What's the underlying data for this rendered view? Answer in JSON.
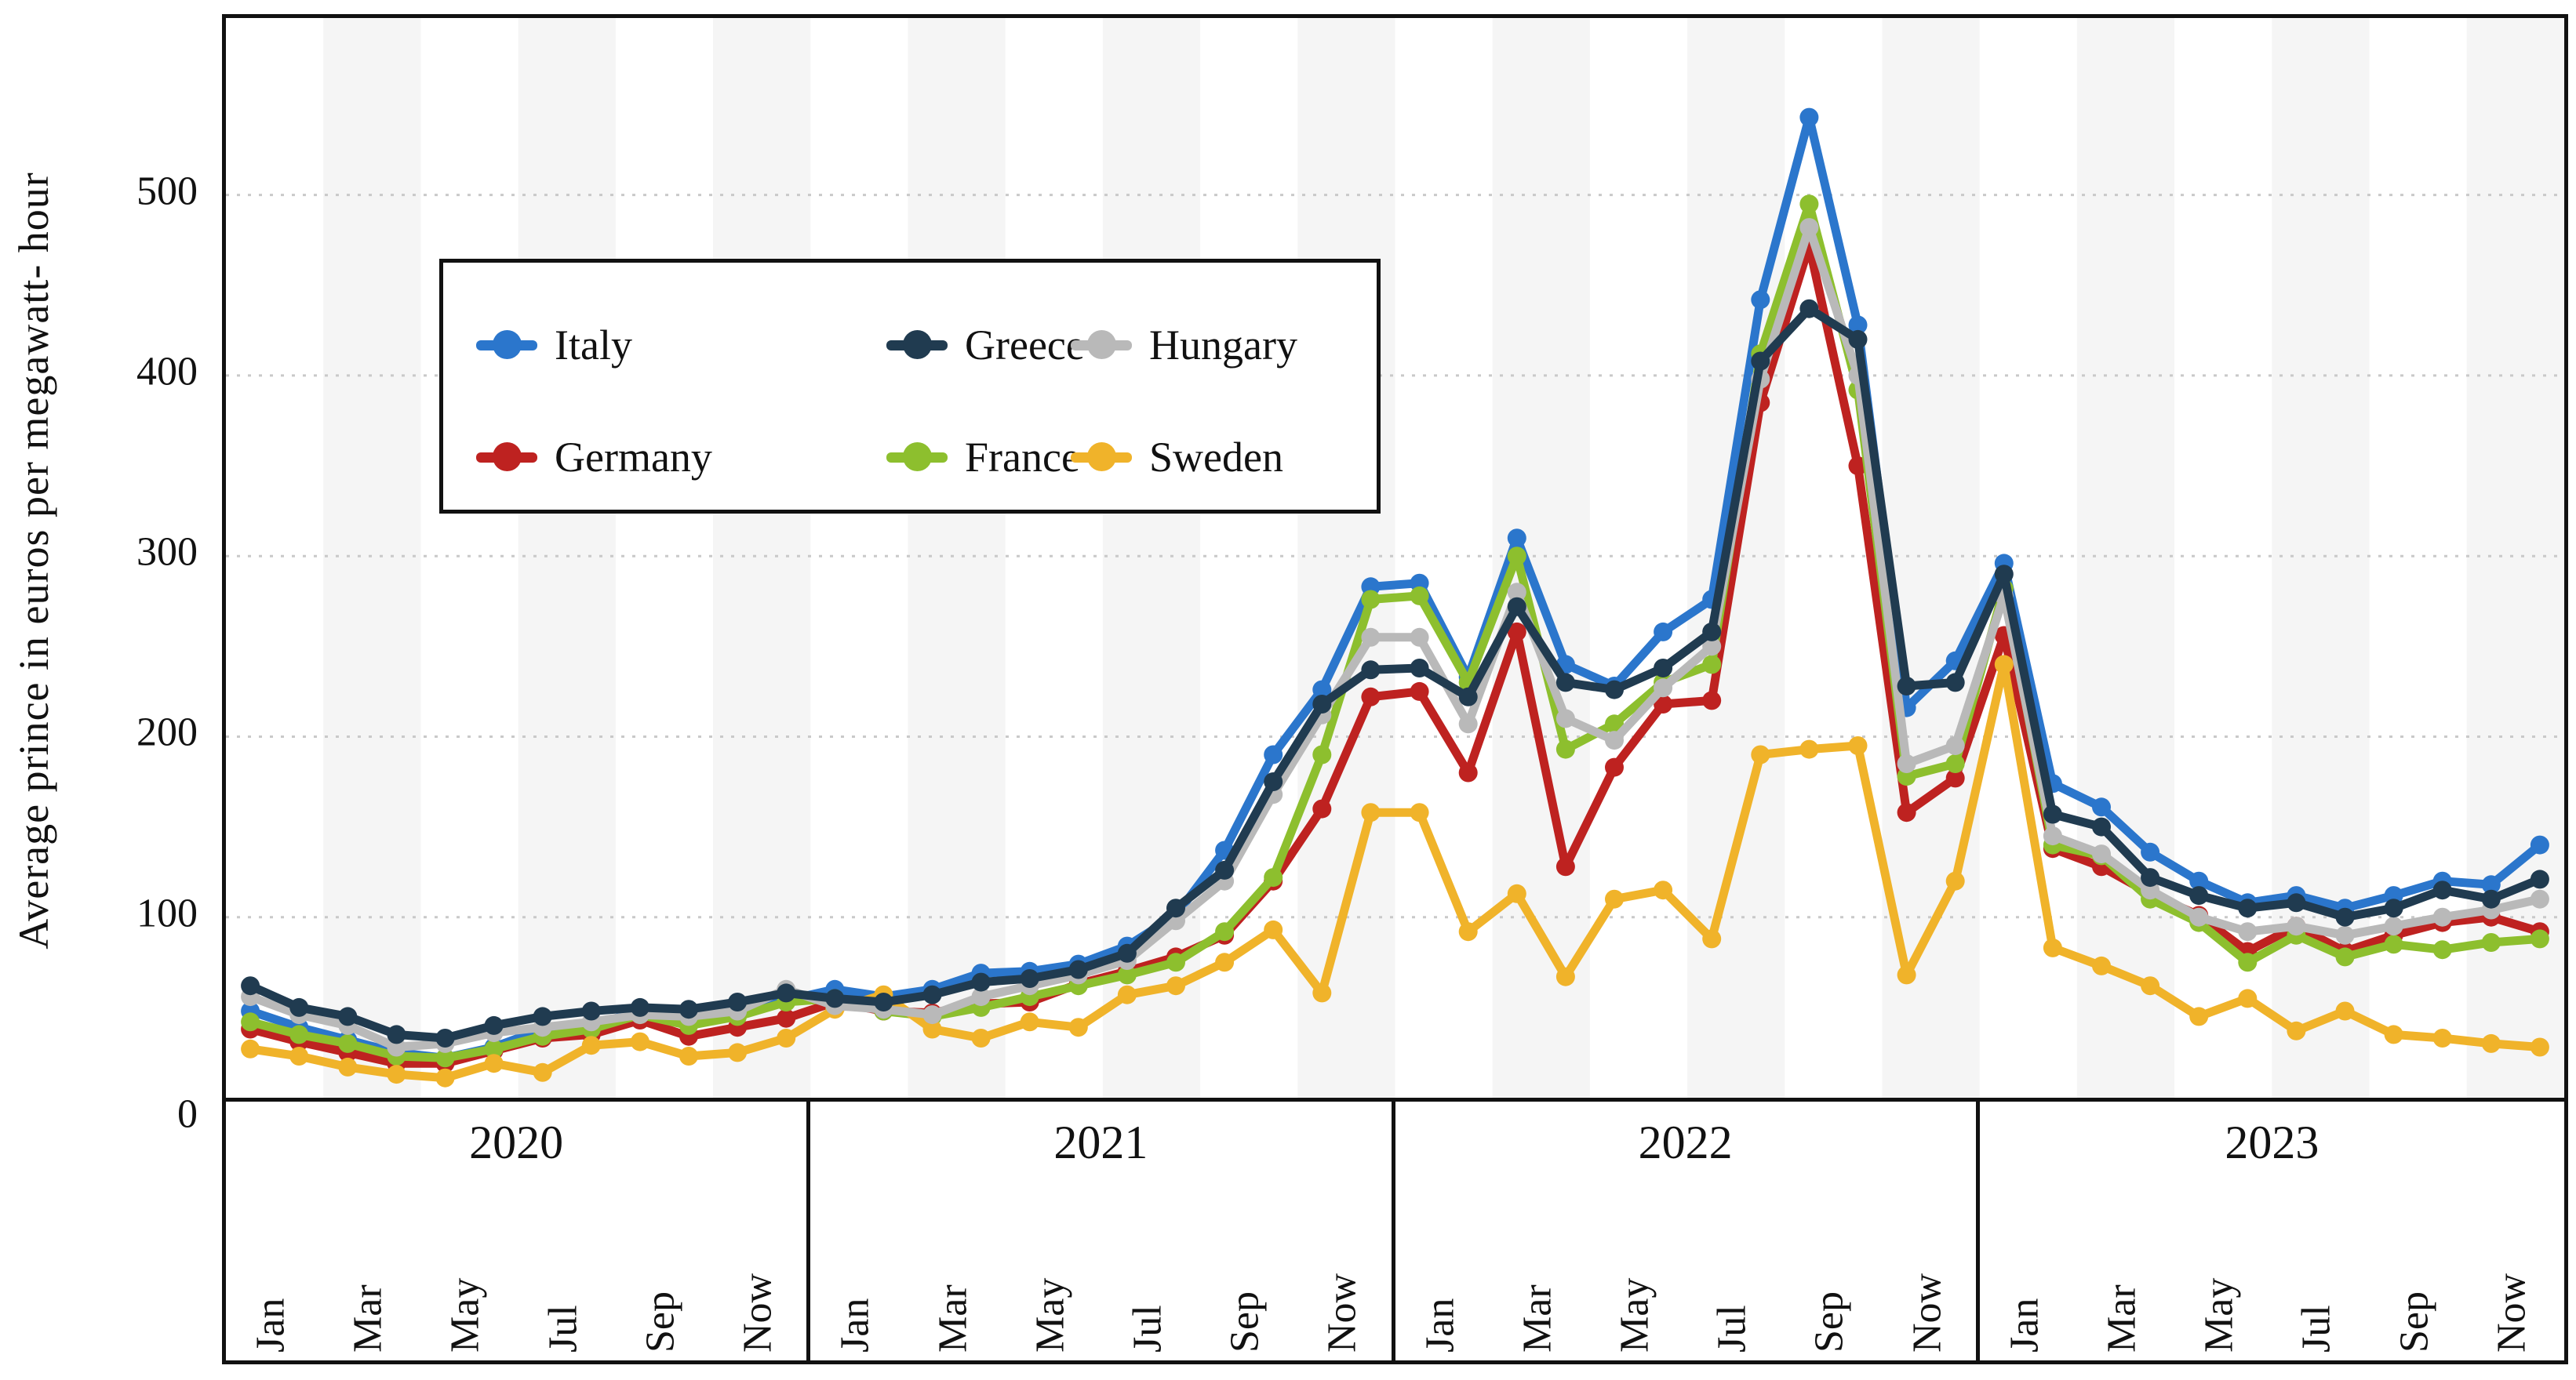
{
  "chart_data": {
    "type": "line",
    "title": "",
    "ylabel": "Average prince in euros per megawatt- hour",
    "xlabel": "",
    "ylim": [
      0,
      598
    ],
    "y_ticks": [
      0,
      100,
      200,
      300,
      400,
      500
    ],
    "grid": "horizontal-dotted, faint alternating vertical bands",
    "legend_position": "upper-left inside plot, boxed, 2 rows x 3 columns",
    "years": [
      "2020",
      "2021",
      "2022",
      "2023"
    ],
    "month_tick_labels": [
      "Jan",
      "Mar",
      "May",
      "Jul",
      "Sep",
      "Now"
    ],
    "months_per_year": 12,
    "x": "monthly from Jan 2020 to Dec 2023 (48 points)",
    "series": [
      {
        "name": "Italy",
        "color": "#2B76CC",
        "values": [
          48,
          39,
          32,
          25,
          22,
          28,
          38,
          40,
          48,
          44,
          49,
          54,
          60,
          56,
          60,
          69,
          70,
          74,
          84,
          101,
          137,
          190,
          226,
          283,
          285,
          233,
          310,
          240,
          228,
          258,
          276,
          442,
          543,
          428,
          216,
          242,
          296,
          174,
          161,
          136,
          120,
          108,
          112,
          105,
          112,
          120,
          118,
          140
        ]
      },
      {
        "name": "Greece",
        "color": "#203B50",
        "values": [
          62,
          50,
          45,
          35,
          33,
          40,
          45,
          48,
          50,
          49,
          53,
          58,
          55,
          53,
          57,
          64,
          66,
          71,
          80,
          105,
          126,
          175,
          218,
          237,
          238,
          222,
          272,
          230,
          226,
          238,
          258,
          408,
          437,
          420,
          228,
          230,
          290,
          157,
          150,
          122,
          112,
          105,
          108,
          100,
          105,
          115,
          110,
          121
        ]
      },
      {
        "name": "Hungary",
        "color": "#B9B9B9",
        "values": [
          56,
          46,
          40,
          28,
          30,
          36,
          39,
          42,
          46,
          45,
          48,
          60,
          51,
          49,
          46,
          56,
          62,
          68,
          76,
          98,
          120,
          168,
          212,
          255,
          255,
          207,
          280,
          210,
          198,
          227,
          250,
          398,
          482,
          400,
          185,
          195,
          278,
          145,
          135,
          115,
          100,
          92,
          95,
          90,
          95,
          100,
          104,
          110
        ]
      },
      {
        "name": "Germany",
        "color": "#BE2220",
        "values": [
          38,
          31,
          25,
          19,
          19,
          26,
          33,
          35,
          43,
          34,
          39,
          44,
          53,
          48,
          47,
          52,
          53,
          63,
          70,
          78,
          90,
          120,
          160,
          222,
          225,
          180,
          258,
          128,
          183,
          218,
          220,
          385,
          472,
          350,
          158,
          177,
          256,
          138,
          128,
          113,
          101,
          81,
          95,
          81,
          90,
          97,
          100,
          92
        ]
      },
      {
        "name": "France",
        "color": "#8DBF2E",
        "values": [
          42,
          35,
          30,
          23,
          22,
          27,
          34,
          38,
          46,
          40,
          45,
          53,
          55,
          48,
          45,
          50,
          56,
          62,
          68,
          75,
          92,
          122,
          190,
          276,
          278,
          230,
          300,
          193,
          207,
          230,
          240,
          412,
          495,
          392,
          178,
          185,
          282,
          140,
          134,
          110,
          97,
          75,
          90,
          78,
          85,
          82,
          86,
          88
        ]
      },
      {
        "name": "Sweden",
        "color": "#F0B32A",
        "values": [
          27,
          23,
          17,
          13,
          11,
          19,
          14,
          29,
          31,
          23,
          25,
          33,
          49,
          57,
          38,
          33,
          42,
          39,
          57,
          62,
          75,
          93,
          58,
          158,
          158,
          92,
          113,
          67,
          110,
          115,
          88,
          190,
          193,
          195,
          68,
          120,
          240,
          83,
          73,
          62,
          45,
          55,
          37,
          48,
          35,
          33,
          30,
          28
        ]
      }
    ],
    "z_order": [
      0,
      3,
      4,
      5,
      2,
      1
    ],
    "legend_order": [
      "Italy",
      "Greece",
      "Hungary",
      "Germany",
      "France",
      "Sweden"
    ],
    "style": {
      "line_width": 11,
      "marker_radius": 12,
      "gridline_color": "#c9c9c9",
      "band_color": "#f3f3f3",
      "border_color": "#111111"
    }
  }
}
